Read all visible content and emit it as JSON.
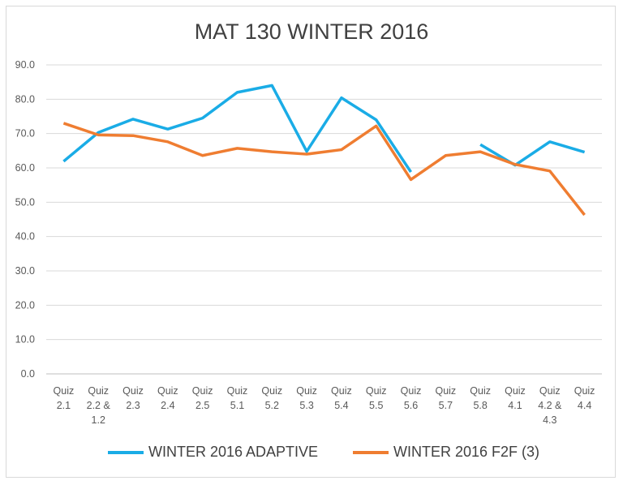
{
  "chart_data": {
    "type": "line",
    "title": "MAT 130 WINTER 2016",
    "xlabel": "",
    "ylabel": "",
    "ylim": [
      0,
      90
    ],
    "yticks": [
      "0.0",
      "10.0",
      "20.0",
      "30.0",
      "40.0",
      "50.0",
      "60.0",
      "70.0",
      "80.0",
      "90.0"
    ],
    "grid": true,
    "legend": "bottom",
    "categories": [
      [
        "Quiz",
        "2.1"
      ],
      [
        "Quiz",
        "2.2 &",
        "1.2"
      ],
      [
        "Quiz",
        "2.3"
      ],
      [
        "Quiz",
        "2.4"
      ],
      [
        "Quiz",
        "2.5"
      ],
      [
        "Quiz",
        "5.1"
      ],
      [
        "Quiz",
        "5.2"
      ],
      [
        "Quiz",
        "5.3"
      ],
      [
        "Quiz",
        "5.4"
      ],
      [
        "Quiz",
        "5.5"
      ],
      [
        "Quiz",
        "5.6"
      ],
      [
        "Quiz",
        "5.7"
      ],
      [
        "Quiz",
        "5.8"
      ],
      [
        "Quiz",
        "4.1"
      ],
      [
        "Quiz",
        "4.2 &",
        "4.3"
      ],
      [
        "Quiz",
        "4.4"
      ]
    ],
    "series": [
      {
        "name": "WINTER  2016 ADAPTIVE",
        "color": "#1aace6",
        "values": [
          61.9,
          70.3,
          74.2,
          71.3,
          74.5,
          82.0,
          84.0,
          64.8,
          80.4,
          74.0,
          58.8,
          null,
          66.8,
          60.8,
          67.6,
          64.6
        ]
      },
      {
        "name": "WINTER 2016 F2F (3)",
        "color": "#ef7d31",
        "values": [
          73.0,
          69.6,
          69.4,
          67.6,
          63.6,
          65.7,
          64.7,
          64.0,
          65.3,
          72.2,
          56.6,
          63.6,
          64.7,
          61.0,
          59.1,
          46.3
        ]
      }
    ]
  }
}
